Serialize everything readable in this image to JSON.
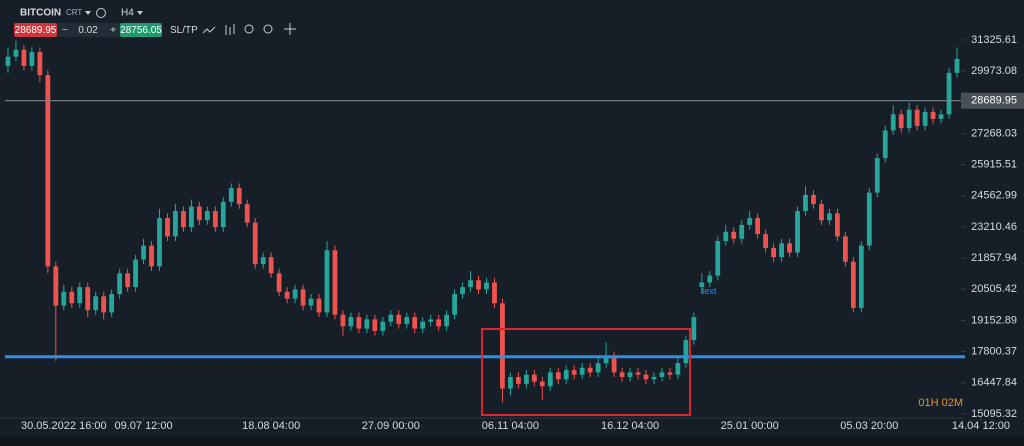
{
  "toolbar": {
    "symbol": "BITCOIN",
    "type": "CRT",
    "timeframe": "H4",
    "bid": "28689.95",
    "minus": "−",
    "volume": "0.02",
    "plus": "+",
    "ask": "28756.05",
    "sltp": "SL/TP"
  },
  "chart_data": {
    "type": "candlestick",
    "up_color": "#26a69a",
    "down_color": "#ef5350",
    "open": [
      30200,
      30600,
      30900,
      30200,
      30800,
      29800,
      21500,
      19800,
      20400,
      19900,
      20600,
      19600,
      20200,
      19500,
      20300,
      21200,
      20600,
      21800,
      22400,
      21500,
      23600,
      22800,
      23900,
      23200,
      24100,
      23500,
      23900,
      23200,
      24300,
      24900,
      24200,
      23400,
      21600,
      21900,
      21200,
      20400,
      20100,
      20500,
      19800,
      20100,
      19500,
      22200,
      19400,
      18900,
      19300,
      18800,
      19200,
      18700,
      19100,
      19400,
      19000,
      19300,
      18800,
      19100,
      19200,
      18900,
      19400,
      20300,
      20600,
      20900,
      20500,
      20800,
      19900,
      16200,
      16700,
      16400,
      16800,
      16500,
      16300,
      16900,
      16600,
      17000,
      16800,
      17100,
      16900,
      17300,
      17600,
      16900,
      16700,
      16900,
      16800,
      16600,
      16700,
      16900,
      16800,
      17300,
      18300,
      20600,
      20800,
      21100,
      22600,
      23000,
      22700,
      23300,
      23600,
      22900,
      22300,
      21900,
      22500,
      22100,
      23900,
      24600,
      24200,
      23500,
      23800,
      22800,
      21700,
      19700,
      22400,
      24700,
      26200,
      27400,
      28100,
      27500,
      28300,
      27600,
      28200,
      27900,
      28100,
      29900
    ],
    "high": [
      31000,
      31300,
      31100,
      31000,
      31000,
      30000,
      21700,
      20700,
      20600,
      20800,
      20800,
      20400,
      20400,
      20500,
      21400,
      21400,
      22000,
      22700,
      22600,
      24000,
      23800,
      24200,
      24100,
      24400,
      24300,
      24100,
      24100,
      24500,
      25100,
      25100,
      24400,
      23600,
      22100,
      22100,
      21400,
      20600,
      20700,
      20700,
      20300,
      20300,
      22600,
      22400,
      19600,
      19500,
      19500,
      19400,
      19400,
      19300,
      19600,
      19600,
      19500,
      19500,
      19300,
      19400,
      19400,
      19600,
      20500,
      20800,
      21300,
      21100,
      21000,
      21000,
      20100,
      16900,
      16900,
      17000,
      17000,
      16700,
      17100,
      17100,
      17200,
      17200,
      17300,
      17300,
      17500,
      18200,
      17800,
      17100,
      17100,
      17100,
      17000,
      16900,
      17100,
      17100,
      17500,
      18500,
      19500,
      21200,
      21300,
      22800,
      23300,
      23200,
      23500,
      23900,
      23800,
      23100,
      22500,
      22700,
      22700,
      24100,
      25000,
      24800,
      24400,
      24000,
      24000,
      23000,
      21900,
      22600,
      24900,
      26400,
      27600,
      28500,
      28300,
      28600,
      28500,
      28400,
      28400,
      28300,
      30100,
      31000
    ],
    "low": [
      29900,
      30400,
      30000,
      30000,
      29500,
      21200,
      17400,
      19600,
      19700,
      19700,
      19300,
      19400,
      19200,
      19300,
      20100,
      20400,
      20400,
      21600,
      21300,
      21300,
      22600,
      22600,
      23000,
      23000,
      23300,
      23300,
      23000,
      23000,
      24100,
      24000,
      23200,
      21400,
      21400,
      21000,
      20200,
      19900,
      19900,
      19600,
      19600,
      19300,
      19300,
      19200,
      18500,
      18700,
      18600,
      18600,
      18500,
      18500,
      18900,
      18800,
      18800,
      18600,
      18600,
      18900,
      18700,
      18700,
      19200,
      20100,
      20400,
      20300,
      20300,
      19700,
      15600,
      15900,
      16200,
      16200,
      16300,
      15700,
      16100,
      16400,
      16400,
      16600,
      16600,
      16700,
      16700,
      17100,
      16700,
      16500,
      16500,
      16600,
      16400,
      16400,
      16500,
      16600,
      16600,
      17100,
      18100,
      20300,
      20600,
      20900,
      22400,
      22500,
      22500,
      23100,
      22700,
      22100,
      21700,
      21700,
      21900,
      21900,
      23700,
      24000,
      23300,
      23300,
      22600,
      21500,
      19500,
      19500,
      22200,
      24500,
      26000,
      27200,
      27300,
      27300,
      27400,
      27400,
      27700,
      27700,
      27900,
      29700
    ],
    "close": [
      30600,
      30900,
      30200,
      30800,
      29800,
      21500,
      19800,
      20400,
      19900,
      20600,
      19600,
      20200,
      19500,
      20300,
      21200,
      20600,
      21800,
      22400,
      21500,
      23600,
      22800,
      23900,
      23200,
      24100,
      23500,
      23900,
      23200,
      24300,
      24900,
      24200,
      23400,
      21600,
      21900,
      21200,
      20400,
      20100,
      20500,
      19800,
      20100,
      19500,
      22200,
      19400,
      18900,
      19300,
      18800,
      19200,
      18700,
      19100,
      19400,
      19000,
      19300,
      18800,
      19100,
      19200,
      18900,
      19400,
      20300,
      20600,
      20900,
      20500,
      20800,
      19900,
      16200,
      16700,
      16400,
      16800,
      16500,
      16300,
      16900,
      16600,
      17000,
      16800,
      17100,
      16900,
      17300,
      17600,
      16900,
      16700,
      16900,
      16800,
      16600,
      16700,
      16900,
      16800,
      17300,
      18300,
      19300,
      20800,
      21100,
      22600,
      23000,
      22700,
      23300,
      23600,
      22900,
      22300,
      21900,
      22500,
      22100,
      23900,
      24600,
      24200,
      23500,
      23800,
      22800,
      21700,
      19700,
      22400,
      24700,
      26200,
      27400,
      28100,
      27500,
      28300,
      27600,
      28200,
      27900,
      28100,
      29900,
      30500
    ],
    "xlim": [
      -1,
      120
    ],
    "ylim": [
      14920,
      33060
    ],
    "yticks": [
      {
        "value": 31325.61,
        "label": "31325.61"
      },
      {
        "value": 29973.08,
        "label": "29973.08"
      },
      {
        "value": 27268.03,
        "label": "27268.03"
      },
      {
        "value": 25915.51,
        "label": "25915.51"
      },
      {
        "value": 24562.99,
        "label": "24562.99"
      },
      {
        "value": 23210.46,
        "label": "23210.46"
      },
      {
        "value": 21857.94,
        "label": "21857.94"
      },
      {
        "value": 20505.42,
        "label": "20505.42"
      },
      {
        "value": 19152.89,
        "label": "19152.89"
      },
      {
        "value": 17800.37,
        "label": "17800.37"
      },
      {
        "value": 16447.84,
        "label": "16447.84"
      },
      {
        "value": 15095.32,
        "label": "15095.32"
      }
    ],
    "xticks": [
      {
        "value": 7,
        "label": "30.05.2022 16:00"
      },
      {
        "value": 17,
        "label": "09.07 12:00"
      },
      {
        "value": 33,
        "label": "18.08 04:00"
      },
      {
        "value": 48,
        "label": "27.09 00:00"
      },
      {
        "value": 63,
        "label": "06.11 04:00"
      },
      {
        "value": 78,
        "label": "16.12 04:00"
      },
      {
        "value": 93,
        "label": "25.01 00:00"
      },
      {
        "value": 108,
        "label": "05.03 20:00"
      },
      {
        "value": 122,
        "label": "14.04 12:00"
      }
    ],
    "hlines": [
      {
        "value": 28689.95,
        "color": "#7d838a"
      },
      {
        "value": 17580,
        "color": "#2f8fe6"
      }
    ],
    "annotation": {
      "text": "text",
      "x": 87,
      "y": 20400
    },
    "countdown": "01H 02M"
  }
}
